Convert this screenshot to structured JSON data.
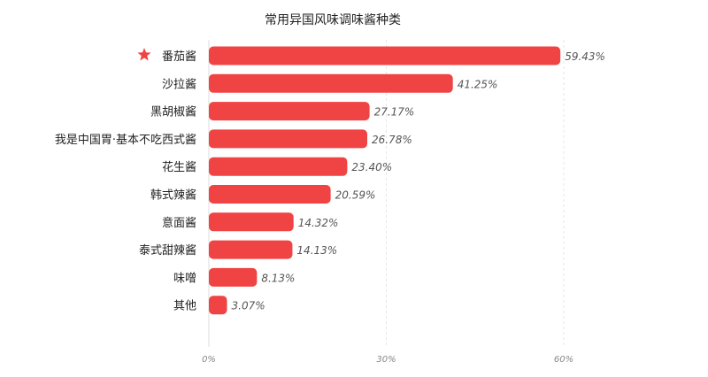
{
  "chart_data": {
    "type": "bar",
    "orientation": "horizontal",
    "title": "常用异国风味调味酱种类",
    "categories": [
      "番茄酱",
      "沙拉酱",
      "黑胡椒酱",
      "我是中国胃·基本不吃西式酱",
      "花生酱",
      "韩式辣酱",
      "意面酱",
      "泰式甜辣酱",
      "味噌",
      "其他"
    ],
    "values": [
      59.43,
      41.25,
      27.17,
      26.78,
      23.4,
      20.59,
      14.32,
      14.13,
      8.13,
      3.07
    ],
    "value_labels": [
      "59.43%",
      "41.25%",
      "27.17%",
      "26.78%",
      "23.40%",
      "20.59%",
      "14.32%",
      "14.13%",
      "8.13%",
      "3.07%"
    ],
    "x_ticks": [
      0,
      30,
      60
    ],
    "x_tick_labels": [
      "0%",
      "30%",
      "60%"
    ],
    "xlim": [
      0,
      60
    ],
    "grid": true,
    "bar_color": "#f04343",
    "highlight_icon": "star-icon",
    "highlight_color": "#f04343"
  }
}
